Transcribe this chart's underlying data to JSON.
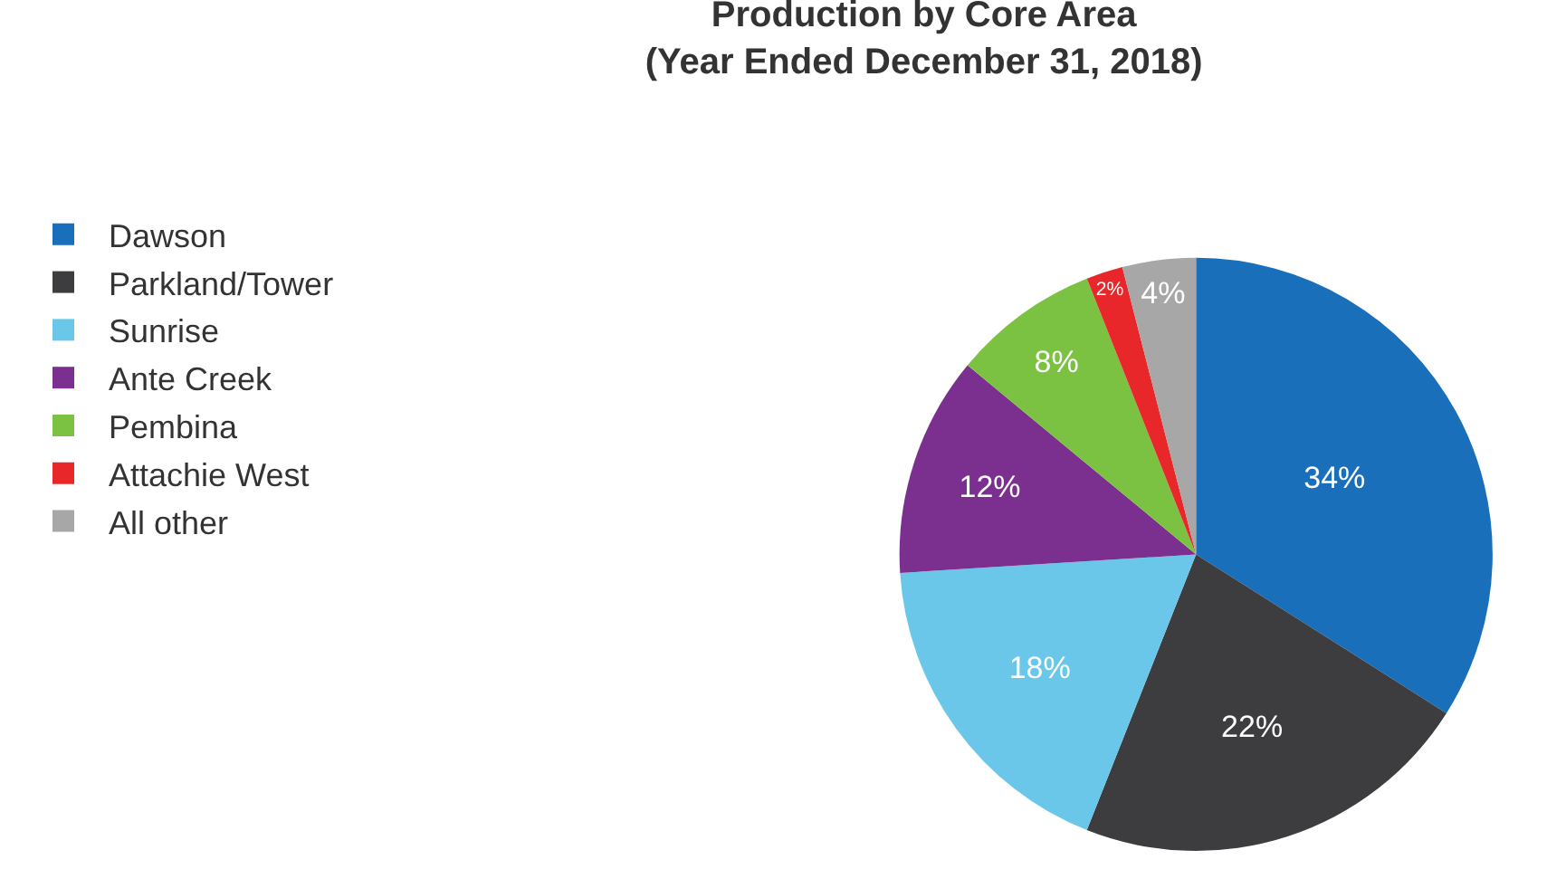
{
  "chart_data": {
    "type": "pie",
    "title": "Production by Core Area\n(Year Ended December 31, 2018)",
    "categories": [
      "Dawson",
      "Parkland/Tower",
      "Sunrise",
      "Ante Creek",
      "Pembina",
      "Attachie West",
      "All other"
    ],
    "values": [
      34,
      22,
      18,
      12,
      8,
      2,
      4
    ],
    "value_labels": [
      "34%",
      "22%",
      "18%",
      "12%",
      "8%",
      "2%",
      "4%"
    ],
    "colors": [
      "#1a6fba",
      "#3d3d40",
      "#6ac7ea",
      "#7b2f8e",
      "#7cc242",
      "#e8272a",
      "#a7a7a7"
    ],
    "legend": "left"
  }
}
